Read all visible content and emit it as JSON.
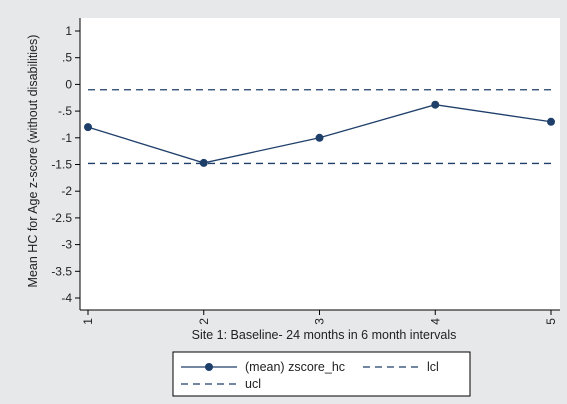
{
  "chart_data": {
    "type": "line",
    "title": "",
    "xlabel": "Site 1: Baseline- 24 months in 6 month intervals",
    "ylabel": "Mean HC for Age z-score (without disabilities)",
    "x": [
      1,
      2,
      3,
      4,
      5
    ],
    "xticks": [
      "1",
      "2",
      "3",
      "4",
      "5"
    ],
    "xlim": [
      0.95,
      5.05
    ],
    "ylim": [
      -4.2,
      1.2
    ],
    "yticks": [
      1,
      0.5,
      0,
      -0.5,
      -1,
      -1.5,
      -2,
      -2.5,
      -3,
      -3.5,
      -4
    ],
    "ytick_labels": [
      "1",
      ".5",
      "0",
      "-.5",
      "-1",
      "-1.5",
      "-2",
      "-2.5",
      "-3",
      "-3.5",
      "-4"
    ],
    "grid": false,
    "legend_position": "bottom",
    "series": [
      {
        "name": "(mean) zscore_hc",
        "values": [
          -0.8,
          -1.47,
          -1.0,
          -0.38,
          -0.7
        ],
        "style": "solid",
        "marker": "circle",
        "color": "#1f3f6b"
      },
      {
        "name": "lcl",
        "values": [
          -1.48,
          -1.48,
          -1.48,
          -1.48,
          -1.48
        ],
        "style": "dashed",
        "color": "#1f3f6b"
      },
      {
        "name": "ucl",
        "values": [
          -0.1,
          -0.1,
          -0.1,
          -0.1,
          -0.1
        ],
        "style": "dashed",
        "color": "#1f3f6b"
      }
    ],
    "legend": {
      "rows": [
        [
          "(mean) zscore_hc",
          "lcl"
        ],
        [
          "ucl"
        ]
      ]
    },
    "colors": {
      "background": "#e7e8ea",
      "plot_region": "#ffffff",
      "series": "#1f3f6b",
      "axis": "#000000"
    }
  }
}
